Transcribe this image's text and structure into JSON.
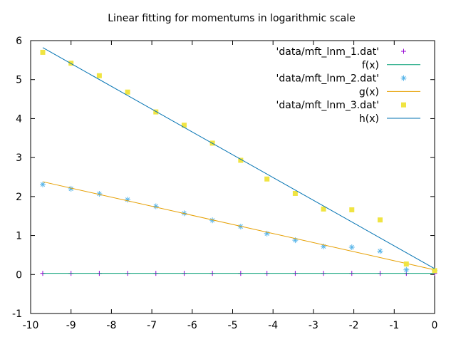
{
  "chart_data": {
    "type": "scatter",
    "title": "Linear fitting for momentums in logarithmic scale",
    "xlabel": "",
    "ylabel": "",
    "xlim": [
      -10,
      0
    ],
    "ylim": [
      -1,
      6
    ],
    "x_ticks": [
      -10,
      -9,
      -8,
      -7,
      -6,
      -5,
      -4,
      -3,
      -2,
      -1,
      0
    ],
    "y_ticks": [
      -1,
      0,
      1,
      2,
      3,
      4,
      5,
      6
    ],
    "grid": false,
    "legend_position": "top-right",
    "series": [
      {
        "name": "'data/mft_lnm_1.dat'",
        "kind": "points",
        "marker": "plus",
        "color": "#9400d3",
        "x": [
          -9.7,
          -9.0,
          -8.3,
          -7.6,
          -6.9,
          -6.2,
          -5.5,
          -4.8,
          -4.15,
          -3.45,
          -2.75,
          -2.05,
          -1.35,
          -0.7,
          0.0
        ],
        "y": [
          0.03,
          0.03,
          0.03,
          0.03,
          0.03,
          0.03,
          0.03,
          0.03,
          0.03,
          0.03,
          0.03,
          0.03,
          0.03,
          0.03,
          0.03
        ]
      },
      {
        "name": "f(x)",
        "kind": "line",
        "color": "#009e73",
        "x": [
          -9.7,
          0.0
        ],
        "y": [
          0.03,
          0.03
        ]
      },
      {
        "name": "'data/mft_lnm_2.dat'",
        "kind": "points",
        "marker": "asterisk",
        "color": "#56b4e9",
        "x": [
          -9.7,
          -9.0,
          -8.3,
          -7.6,
          -6.9,
          -6.2,
          -5.5,
          -4.8,
          -4.15,
          -3.45,
          -2.75,
          -2.05,
          -1.35,
          -0.7,
          0.0
        ],
        "y": [
          2.31,
          2.2,
          2.07,
          1.92,
          1.75,
          1.57,
          1.39,
          1.23,
          1.05,
          0.88,
          0.72,
          0.7,
          0.6,
          0.12,
          0.1
        ]
      },
      {
        "name": "g(x)",
        "kind": "line",
        "color": "#e69f00",
        "x": [
          -9.7,
          0.0
        ],
        "y": [
          2.38,
          0.12
        ]
      },
      {
        "name": "'data/mft_lnm_3.dat'",
        "kind": "points",
        "marker": "square",
        "color": "#f0e442",
        "x": [
          -9.7,
          -9.0,
          -8.3,
          -7.6,
          -6.9,
          -6.2,
          -5.5,
          -4.8,
          -4.15,
          -3.45,
          -2.75,
          -2.05,
          -1.35,
          -0.7,
          0.0
        ],
        "y": [
          5.7,
          5.42,
          5.1,
          4.68,
          4.17,
          3.83,
          3.37,
          2.93,
          2.45,
          2.08,
          1.68,
          1.66,
          1.4,
          0.27,
          0.1
        ]
      },
      {
        "name": "h(x)",
        "kind": "line",
        "color": "#0072b2",
        "x": [
          -9.7,
          0.0
        ],
        "y": [
          5.82,
          0.15
        ]
      }
    ]
  }
}
